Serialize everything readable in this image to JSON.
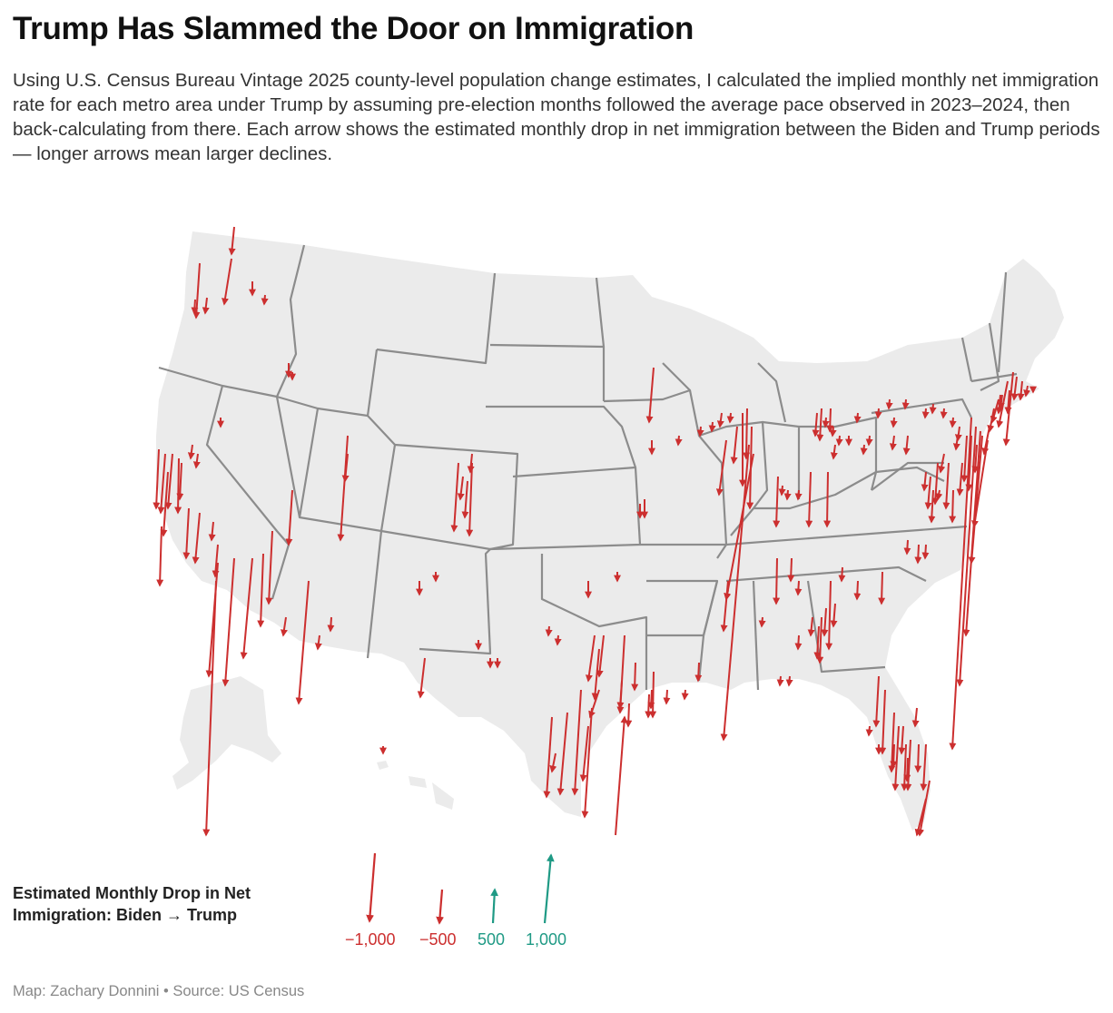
{
  "title": "Trump Has Slammed the Door on Immigration",
  "subtitle": "Using U.S. Census Bureau Vintage 2025 county-level population change estimates, I calculated the implied monthly net immigration rate for each metro area under Trump by assuming pre-election months followed the average pace observed in 2023–2024, then back-calculating from there. Each arrow shows the estimated monthly drop in net immigration between the Biden and Trump periods — longer arrows mean larger declines.",
  "legend": {
    "title": "Estimated Monthly Drop in Net Immigration: Biden → Trump",
    "items": [
      {
        "label": "−1,000",
        "value": -1000
      },
      {
        "label": "−500",
        "value": -500
      },
      {
        "label": "500",
        "value": 500
      },
      {
        "label": "1,000",
        "value": 1000
      }
    ]
  },
  "footer": "Map: Zachary Donnini • Source: US Census",
  "colors": {
    "decline": "#cc2f2f",
    "increase": "#1f9a85",
    "land": "#ebebeb",
    "border": "#8c8c8c",
    "footer": "#888888"
  }
}
